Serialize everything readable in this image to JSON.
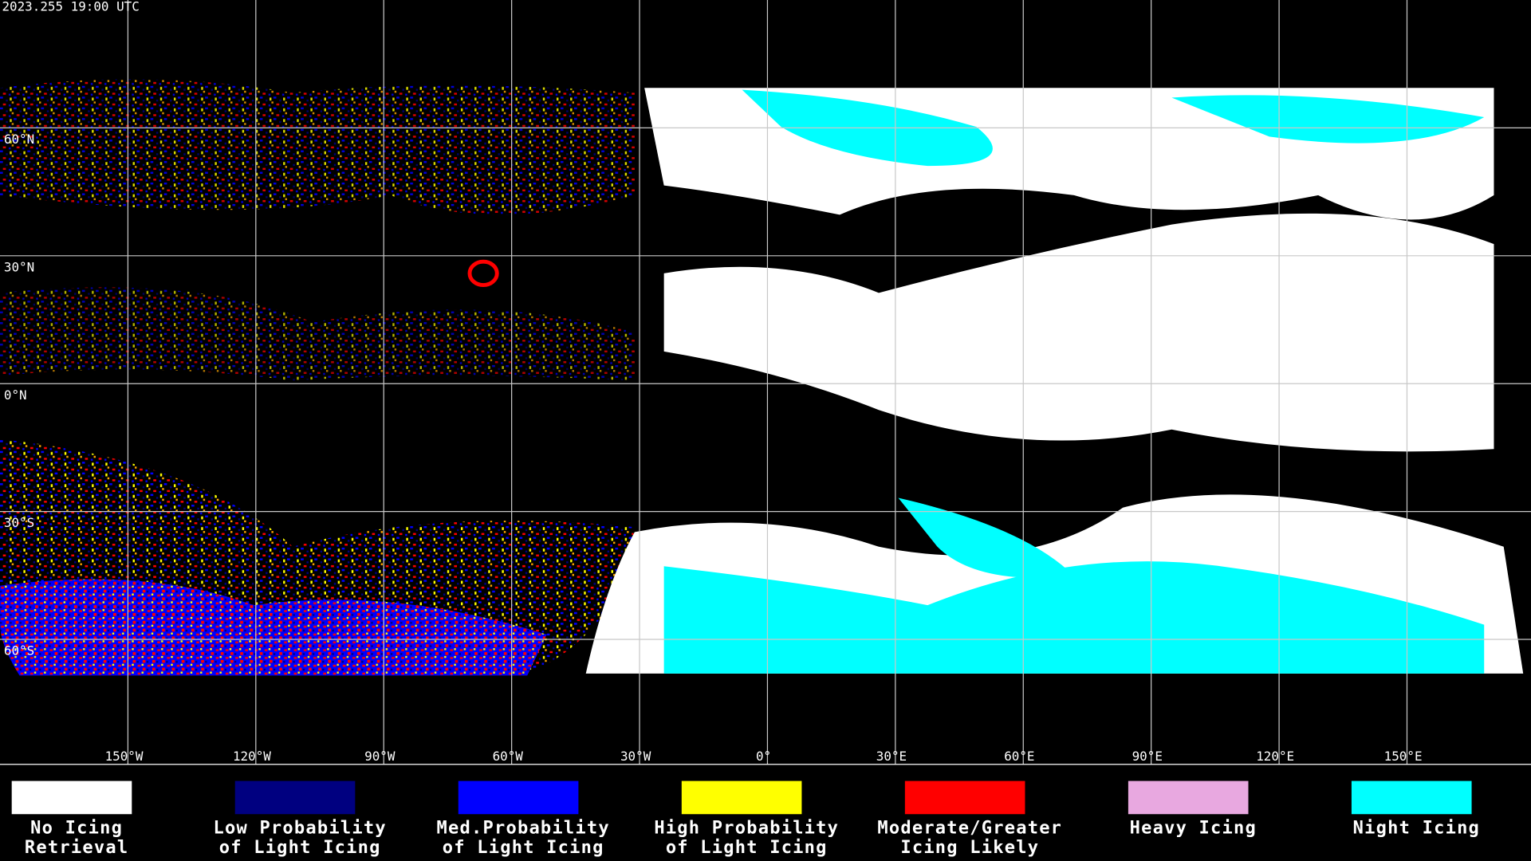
{
  "header": {
    "timestamp": "2023.255 19:00 UTC"
  },
  "map": {
    "latitudes": [
      {
        "value": 60,
        "label": "60°N"
      },
      {
        "value": 30,
        "label": "30°N"
      },
      {
        "value": 0,
        "label": "0°N"
      },
      {
        "value": -30,
        "label": "30°S"
      },
      {
        "value": -60,
        "label": "60°S"
      }
    ],
    "longitudes": [
      {
        "value": -150,
        "label": "150°W"
      },
      {
        "value": -120,
        "label": "120°W"
      },
      {
        "value": -90,
        "label": "90°W"
      },
      {
        "value": -60,
        "label": "60°W"
      },
      {
        "value": -30,
        "label": "30°W"
      },
      {
        "value": 0,
        "label": "0°"
      },
      {
        "value": 30,
        "label": "30°E"
      },
      {
        "value": 60,
        "label": "60°E"
      },
      {
        "value": 90,
        "label": "90°E"
      },
      {
        "value": 120,
        "label": "120°E"
      },
      {
        "value": 150,
        "label": "150°E"
      }
    ]
  },
  "legend": [
    {
      "color": "#ffffff",
      "lines": [
        "No Icing",
        "Retrieval"
      ]
    },
    {
      "color": "#000080",
      "lines": [
        "Low Probability",
        "of Light Icing"
      ]
    },
    {
      "color": "#0000ff",
      "lines": [
        "Med.Probability",
        "of Light Icing"
      ]
    },
    {
      "color": "#ffff00",
      "lines": [
        "High Probability",
        "of Light Icing"
      ]
    },
    {
      "color": "#ff0000",
      "lines": [
        "Moderate/Greater",
        "Icing Likely"
      ]
    },
    {
      "color": "#e8a8e0",
      "lines": [
        "Heavy Icing"
      ]
    },
    {
      "color": "#00ffff",
      "lines": [
        "Night Icing"
      ]
    }
  ]
}
